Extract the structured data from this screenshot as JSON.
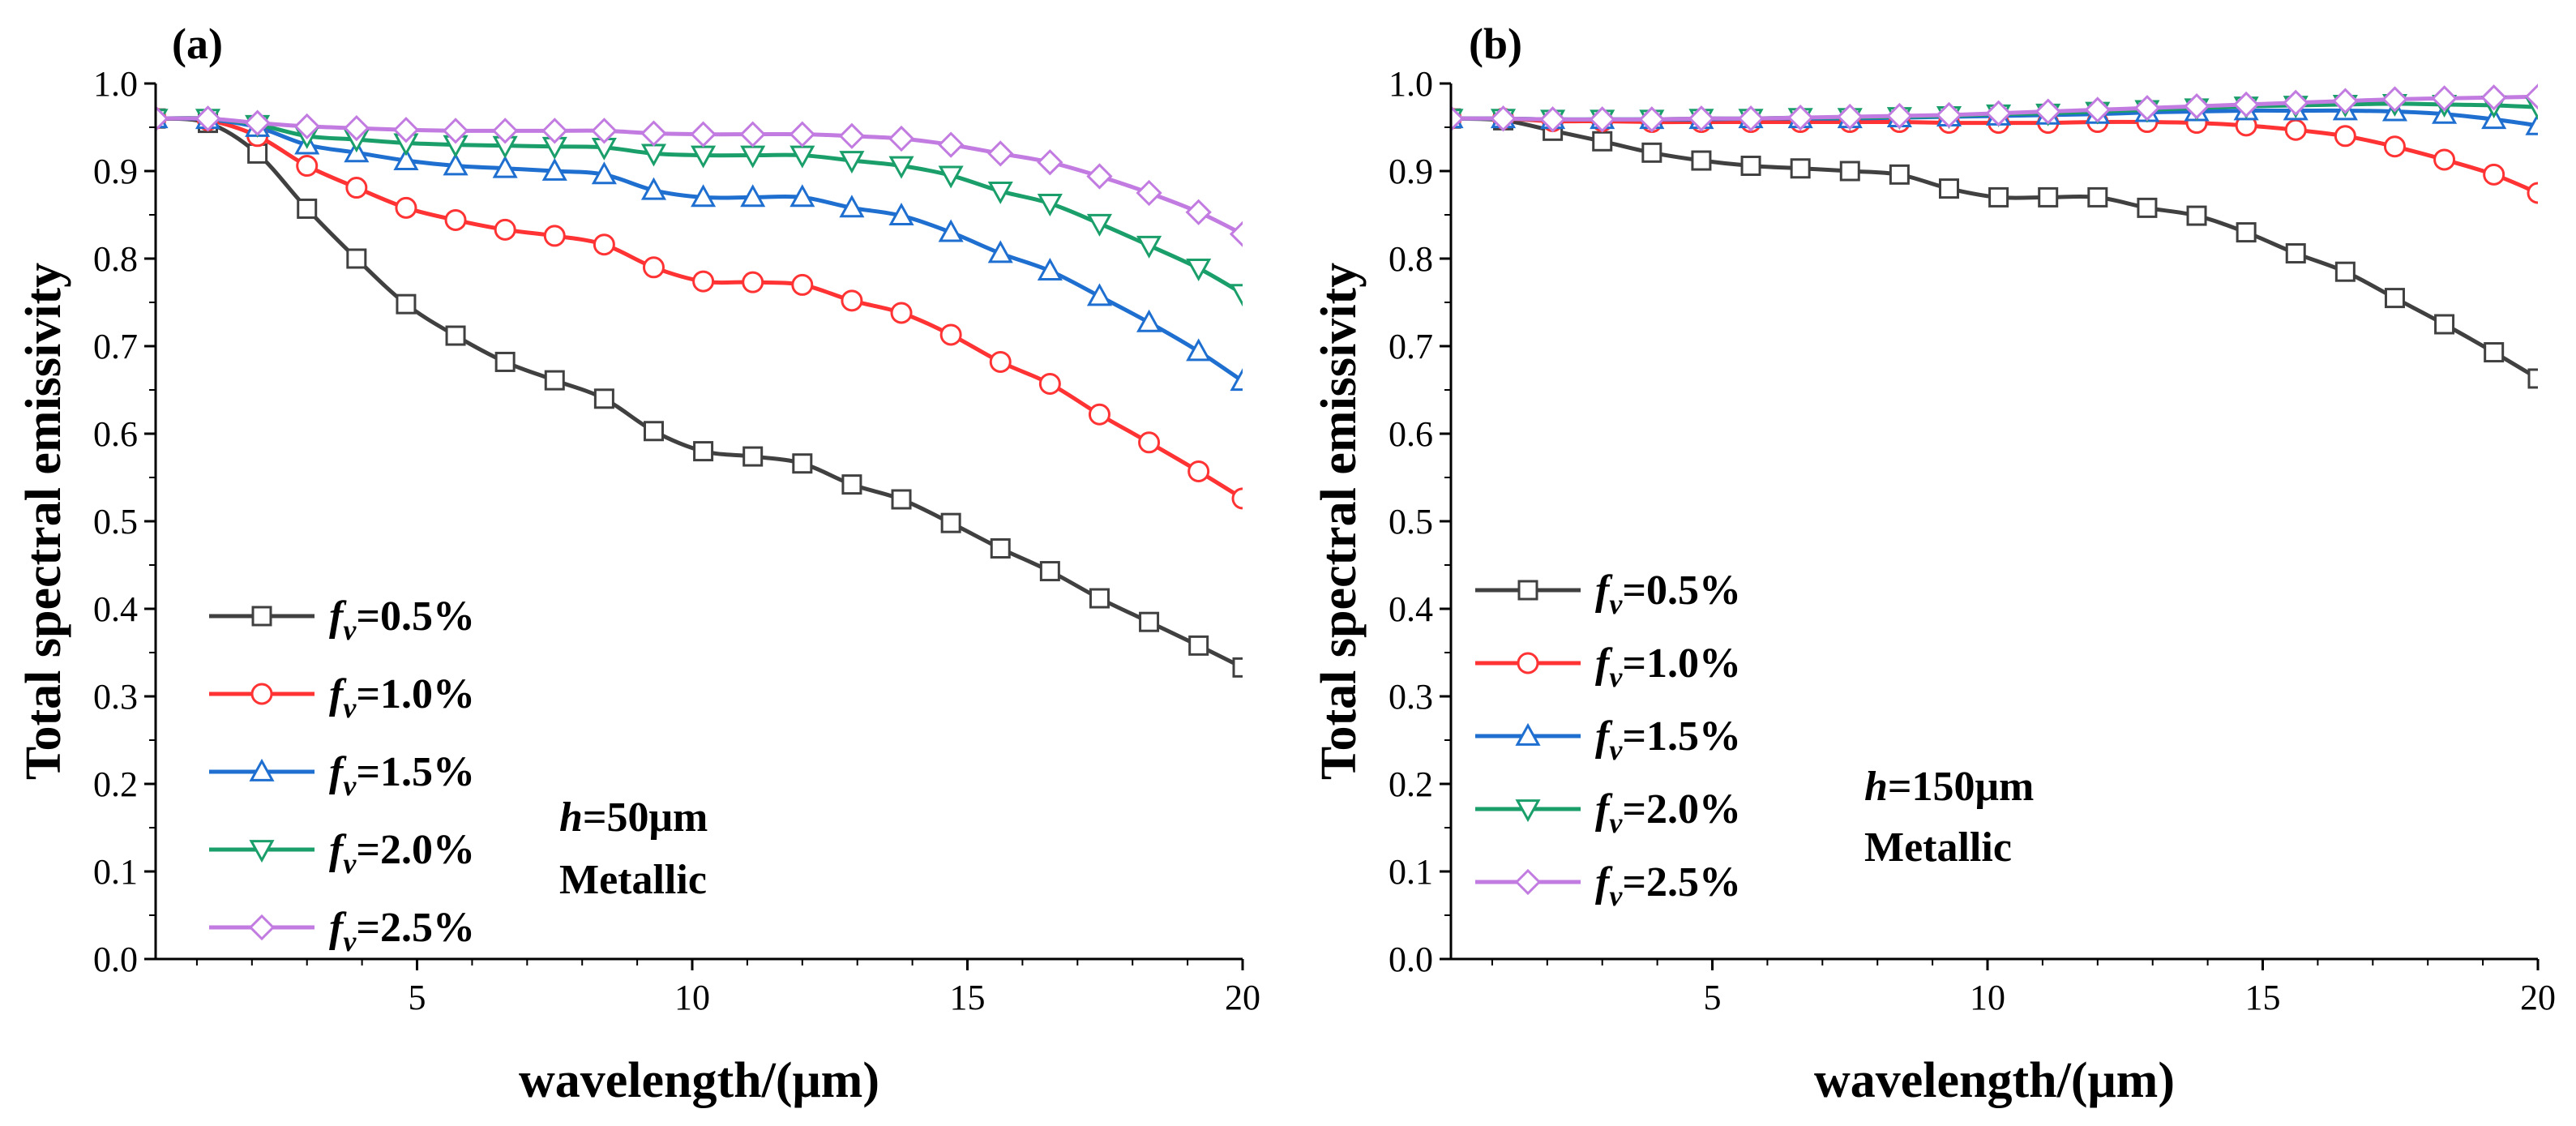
{
  "figure": {
    "legend_prefix": "f",
    "legend_subscript": "v"
  },
  "chart_data": [
    {
      "type": "line",
      "panel": "(a)",
      "xlabel": "wavelength/(μm)",
      "ylabel": "Total spectral emissivity",
      "xlim": [
        0.25,
        20
      ],
      "ylim": [
        0.0,
        1.0
      ],
      "xticks": [
        5,
        10,
        15,
        20
      ],
      "yticks": [
        0.0,
        0.1,
        0.2,
        0.3,
        0.4,
        0.5,
        0.6,
        0.7,
        0.8,
        0.9,
        1.0
      ],
      "grid": false,
      "legend_position": "bottom-left",
      "annotation": {
        "h_italic": "h",
        "h_value": "=50μm",
        "material": "Metallic"
      },
      "x": [
        0.25,
        1.2,
        2.1,
        3.0,
        3.9,
        4.8,
        5.7,
        6.6,
        7.5,
        8.4,
        9.3,
        10.2,
        11.1,
        12.0,
        12.9,
        13.8,
        14.7,
        15.6,
        16.5,
        17.4,
        18.3,
        19.2,
        20.0
      ],
      "series": [
        {
          "name": "=0.5%",
          "color": "#404040",
          "marker": "square",
          "values": [
            0.96,
            0.955,
            0.92,
            0.857,
            0.8,
            0.748,
            0.712,
            0.682,
            0.661,
            0.64,
            0.603,
            0.58,
            0.574,
            0.566,
            0.542,
            0.525,
            0.498,
            0.469,
            0.443,
            0.412,
            0.385,
            0.358,
            0.333
          ]
        },
        {
          "name": "=1.0%",
          "color": "#ff3333",
          "marker": "circle",
          "values": [
            0.96,
            0.958,
            0.94,
            0.906,
            0.881,
            0.858,
            0.844,
            0.833,
            0.826,
            0.816,
            0.79,
            0.774,
            0.773,
            0.77,
            0.752,
            0.738,
            0.713,
            0.682,
            0.657,
            0.622,
            0.59,
            0.557,
            0.526
          ]
        },
        {
          "name": "=1.5%",
          "color": "#1f6fd0",
          "marker": "triangle-up",
          "values": [
            0.96,
            0.959,
            0.95,
            0.93,
            0.921,
            0.912,
            0.906,
            0.903,
            0.9,
            0.896,
            0.878,
            0.87,
            0.87,
            0.87,
            0.858,
            0.849,
            0.83,
            0.806,
            0.786,
            0.757,
            0.727,
            0.694,
            0.66
          ]
        },
        {
          "name": "=2.0%",
          "color": "#1a9f6a",
          "marker": "triangle-down",
          "values": [
            0.96,
            0.96,
            0.953,
            0.94,
            0.936,
            0.932,
            0.93,
            0.929,
            0.928,
            0.927,
            0.92,
            0.918,
            0.918,
            0.918,
            0.912,
            0.906,
            0.895,
            0.877,
            0.863,
            0.84,
            0.815,
            0.789,
            0.76
          ]
        },
        {
          "name": "=2.5%",
          "color": "#c27be0",
          "marker": "diamond",
          "values": [
            0.96,
            0.96,
            0.955,
            0.951,
            0.949,
            0.947,
            0.946,
            0.946,
            0.946,
            0.946,
            0.943,
            0.942,
            0.942,
            0.942,
            0.94,
            0.937,
            0.93,
            0.92,
            0.91,
            0.894,
            0.875,
            0.853,
            0.828
          ]
        }
      ]
    },
    {
      "type": "line",
      "panel": "(b)",
      "xlabel": "wavelength/(μm)",
      "ylabel": "Total spectral emissivity",
      "xlim": [
        0.25,
        20
      ],
      "ylim": [
        0.0,
        1.0
      ],
      "xticks": [
        5,
        10,
        15,
        20
      ],
      "yticks": [
        0.0,
        0.1,
        0.2,
        0.3,
        0.4,
        0.5,
        0.6,
        0.7,
        0.8,
        0.9,
        1.0
      ],
      "grid": false,
      "legend_position": "center-left",
      "annotation": {
        "h_italic": "h",
        "h_value": "=150μm",
        "material": "Metallic"
      },
      "x": [
        0.25,
        1.2,
        2.1,
        3.0,
        3.9,
        4.8,
        5.7,
        6.6,
        7.5,
        8.4,
        9.3,
        10.2,
        11.1,
        12.0,
        12.9,
        13.8,
        14.7,
        15.6,
        16.5,
        17.4,
        18.3,
        19.2,
        20.0
      ],
      "series": [
        {
          "name": "=0.5%",
          "color": "#404040",
          "marker": "square",
          "values": [
            0.96,
            0.958,
            0.946,
            0.934,
            0.921,
            0.912,
            0.906,
            0.903,
            0.9,
            0.896,
            0.88,
            0.87,
            0.87,
            0.87,
            0.858,
            0.849,
            0.83,
            0.806,
            0.785,
            0.755,
            0.725,
            0.693,
            0.663
          ]
        },
        {
          "name": "=1.0%",
          "color": "#ff3333",
          "marker": "circle",
          "values": [
            0.96,
            0.96,
            0.957,
            0.957,
            0.956,
            0.956,
            0.956,
            0.956,
            0.956,
            0.956,
            0.955,
            0.955,
            0.955,
            0.956,
            0.956,
            0.955,
            0.952,
            0.947,
            0.94,
            0.928,
            0.913,
            0.896,
            0.875
          ]
        },
        {
          "name": "=1.5%",
          "color": "#1f6fd0",
          "marker": "triangle-up",
          "values": [
            0.96,
            0.96,
            0.959,
            0.959,
            0.959,
            0.959,
            0.96,
            0.96,
            0.96,
            0.961,
            0.962,
            0.963,
            0.964,
            0.965,
            0.967,
            0.968,
            0.969,
            0.969,
            0.969,
            0.968,
            0.965,
            0.959,
            0.952
          ]
        },
        {
          "name": "=2.0%",
          "color": "#1a9f6a",
          "marker": "triangle-down",
          "values": [
            0.96,
            0.96,
            0.959,
            0.959,
            0.959,
            0.96,
            0.96,
            0.961,
            0.961,
            0.962,
            0.963,
            0.965,
            0.966,
            0.968,
            0.97,
            0.972,
            0.974,
            0.975,
            0.976,
            0.977,
            0.976,
            0.975,
            0.973
          ]
        },
        {
          "name": "=2.5%",
          "color": "#c27be0",
          "marker": "diamond",
          "values": [
            0.96,
            0.96,
            0.959,
            0.959,
            0.959,
            0.96,
            0.96,
            0.961,
            0.962,
            0.963,
            0.964,
            0.966,
            0.968,
            0.97,
            0.972,
            0.974,
            0.976,
            0.978,
            0.98,
            0.982,
            0.983,
            0.984,
            0.985
          ]
        }
      ]
    }
  ]
}
